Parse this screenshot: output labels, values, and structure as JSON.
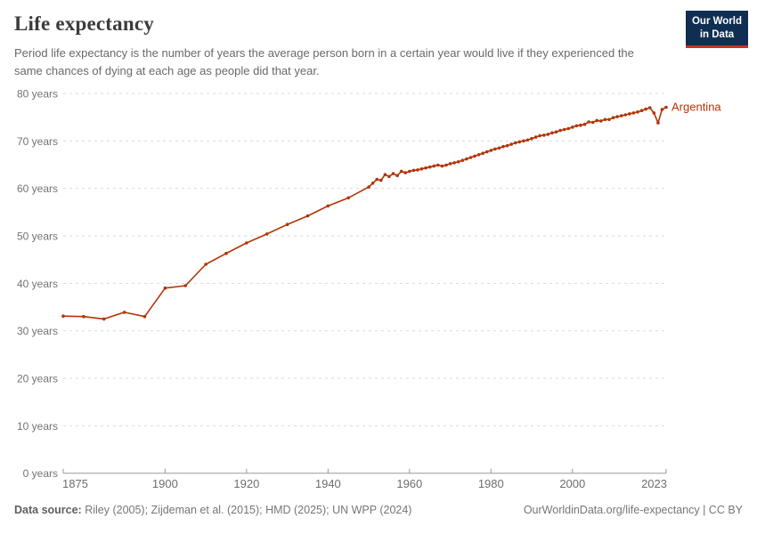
{
  "header": {
    "title": "Life expectancy",
    "subtitle": "Period life expectancy is the number of years the average person born in a certain year would live if they experienced the same chances of dying at each age as people did that year."
  },
  "logo": {
    "line1": "Our World",
    "line2": "in Data",
    "bg_color": "#0f2e52",
    "accent_color": "#cf2d23"
  },
  "chart_data": {
    "type": "line",
    "title": "Life expectancy",
    "xlabel": "",
    "ylabel": "",
    "xlim": [
      1875,
      2023
    ],
    "ylim": [
      0,
      80
    ],
    "grid": "horizontal-dashed",
    "legend_position": "end-of-line-label",
    "x_ticks": [
      1875,
      1900,
      1920,
      1940,
      1960,
      1980,
      2000,
      2023
    ],
    "y_ticks": [
      0,
      10,
      20,
      30,
      40,
      50,
      60,
      70,
      80
    ],
    "y_tick_suffix": " years",
    "series": [
      {
        "name": "Argentina",
        "color": "#b13507",
        "points": [
          [
            1875,
            33.1
          ],
          [
            1880,
            33
          ],
          [
            1885,
            32.5
          ],
          [
            1890,
            33.9
          ],
          [
            1895,
            33
          ],
          [
            1900,
            39
          ],
          [
            1905,
            39.5
          ],
          [
            1910,
            44
          ],
          [
            1915,
            46.3
          ],
          [
            1920,
            48.5
          ],
          [
            1925,
            50.4
          ],
          [
            1930,
            52.4
          ],
          [
            1935,
            54.2
          ],
          [
            1940,
            56.3
          ],
          [
            1945,
            58
          ],
          [
            1950,
            60.3
          ],
          [
            1951,
            61.1
          ],
          [
            1952,
            61.9
          ],
          [
            1953,
            61.7
          ],
          [
            1954,
            62.9
          ],
          [
            1955,
            62.5
          ],
          [
            1956,
            63.1
          ],
          [
            1957,
            62.7
          ],
          [
            1958,
            63.6
          ],
          [
            1959,
            63.3
          ],
          [
            1960,
            63.6
          ],
          [
            1961,
            63.8
          ],
          [
            1962,
            63.9
          ],
          [
            1963,
            64.1
          ],
          [
            1964,
            64.3
          ],
          [
            1965,
            64.5
          ],
          [
            1966,
            64.7
          ],
          [
            1967,
            64.9
          ],
          [
            1968,
            64.7
          ],
          [
            1969,
            64.9
          ],
          [
            1970,
            65.2
          ],
          [
            1971,
            65.4
          ],
          [
            1972,
            65.6
          ],
          [
            1973,
            65.9
          ],
          [
            1974,
            66.2
          ],
          [
            1975,
            66.5
          ],
          [
            1976,
            66.8
          ],
          [
            1977,
            67.1
          ],
          [
            1978,
            67.4
          ],
          [
            1979,
            67.7
          ],
          [
            1980,
            68
          ],
          [
            1981,
            68.3
          ],
          [
            1982,
            68.5
          ],
          [
            1983,
            68.8
          ],
          [
            1984,
            69
          ],
          [
            1985,
            69.3
          ],
          [
            1986,
            69.6
          ],
          [
            1987,
            69.8
          ],
          [
            1988,
            70
          ],
          [
            1989,
            70.2
          ],
          [
            1990,
            70.5
          ],
          [
            1991,
            70.8
          ],
          [
            1992,
            71.1
          ],
          [
            1993,
            71.2
          ],
          [
            1994,
            71.4
          ],
          [
            1995,
            71.7
          ],
          [
            1996,
            71.9
          ],
          [
            1997,
            72.2
          ],
          [
            1998,
            72.4
          ],
          [
            1999,
            72.6
          ],
          [
            2000,
            72.9
          ],
          [
            2001,
            73.2
          ],
          [
            2002,
            73.3
          ],
          [
            2003,
            73.5
          ],
          [
            2004,
            74
          ],
          [
            2005,
            73.9
          ],
          [
            2006,
            74.3
          ],
          [
            2007,
            74.2
          ],
          [
            2008,
            74.5
          ],
          [
            2009,
            74.5
          ],
          [
            2010,
            74.9
          ],
          [
            2011,
            75.1
          ],
          [
            2012,
            75.3
          ],
          [
            2013,
            75.5
          ],
          [
            2014,
            75.7
          ],
          [
            2015,
            75.9
          ],
          [
            2016,
            76.1
          ],
          [
            2017,
            76.4
          ],
          [
            2018,
            76.7
          ],
          [
            2019,
            77
          ],
          [
            2020,
            75.9
          ],
          [
            2021,
            73.8
          ],
          [
            2022,
            76.6
          ],
          [
            2023,
            77.1
          ]
        ]
      }
    ],
    "colors": {
      "gridline": "#dadada",
      "axis": "#999999",
      "y_tick_label": "#737373",
      "x_tick_label": "#6e6e6e"
    }
  },
  "footer": {
    "source_label": "Data source:",
    "source_text": " Riley (2005); Zijdeman et al. (2015); HMD (2025); UN WPP (2024)",
    "right_text": "OurWorldinData.org/life-expectancy | CC BY"
  }
}
